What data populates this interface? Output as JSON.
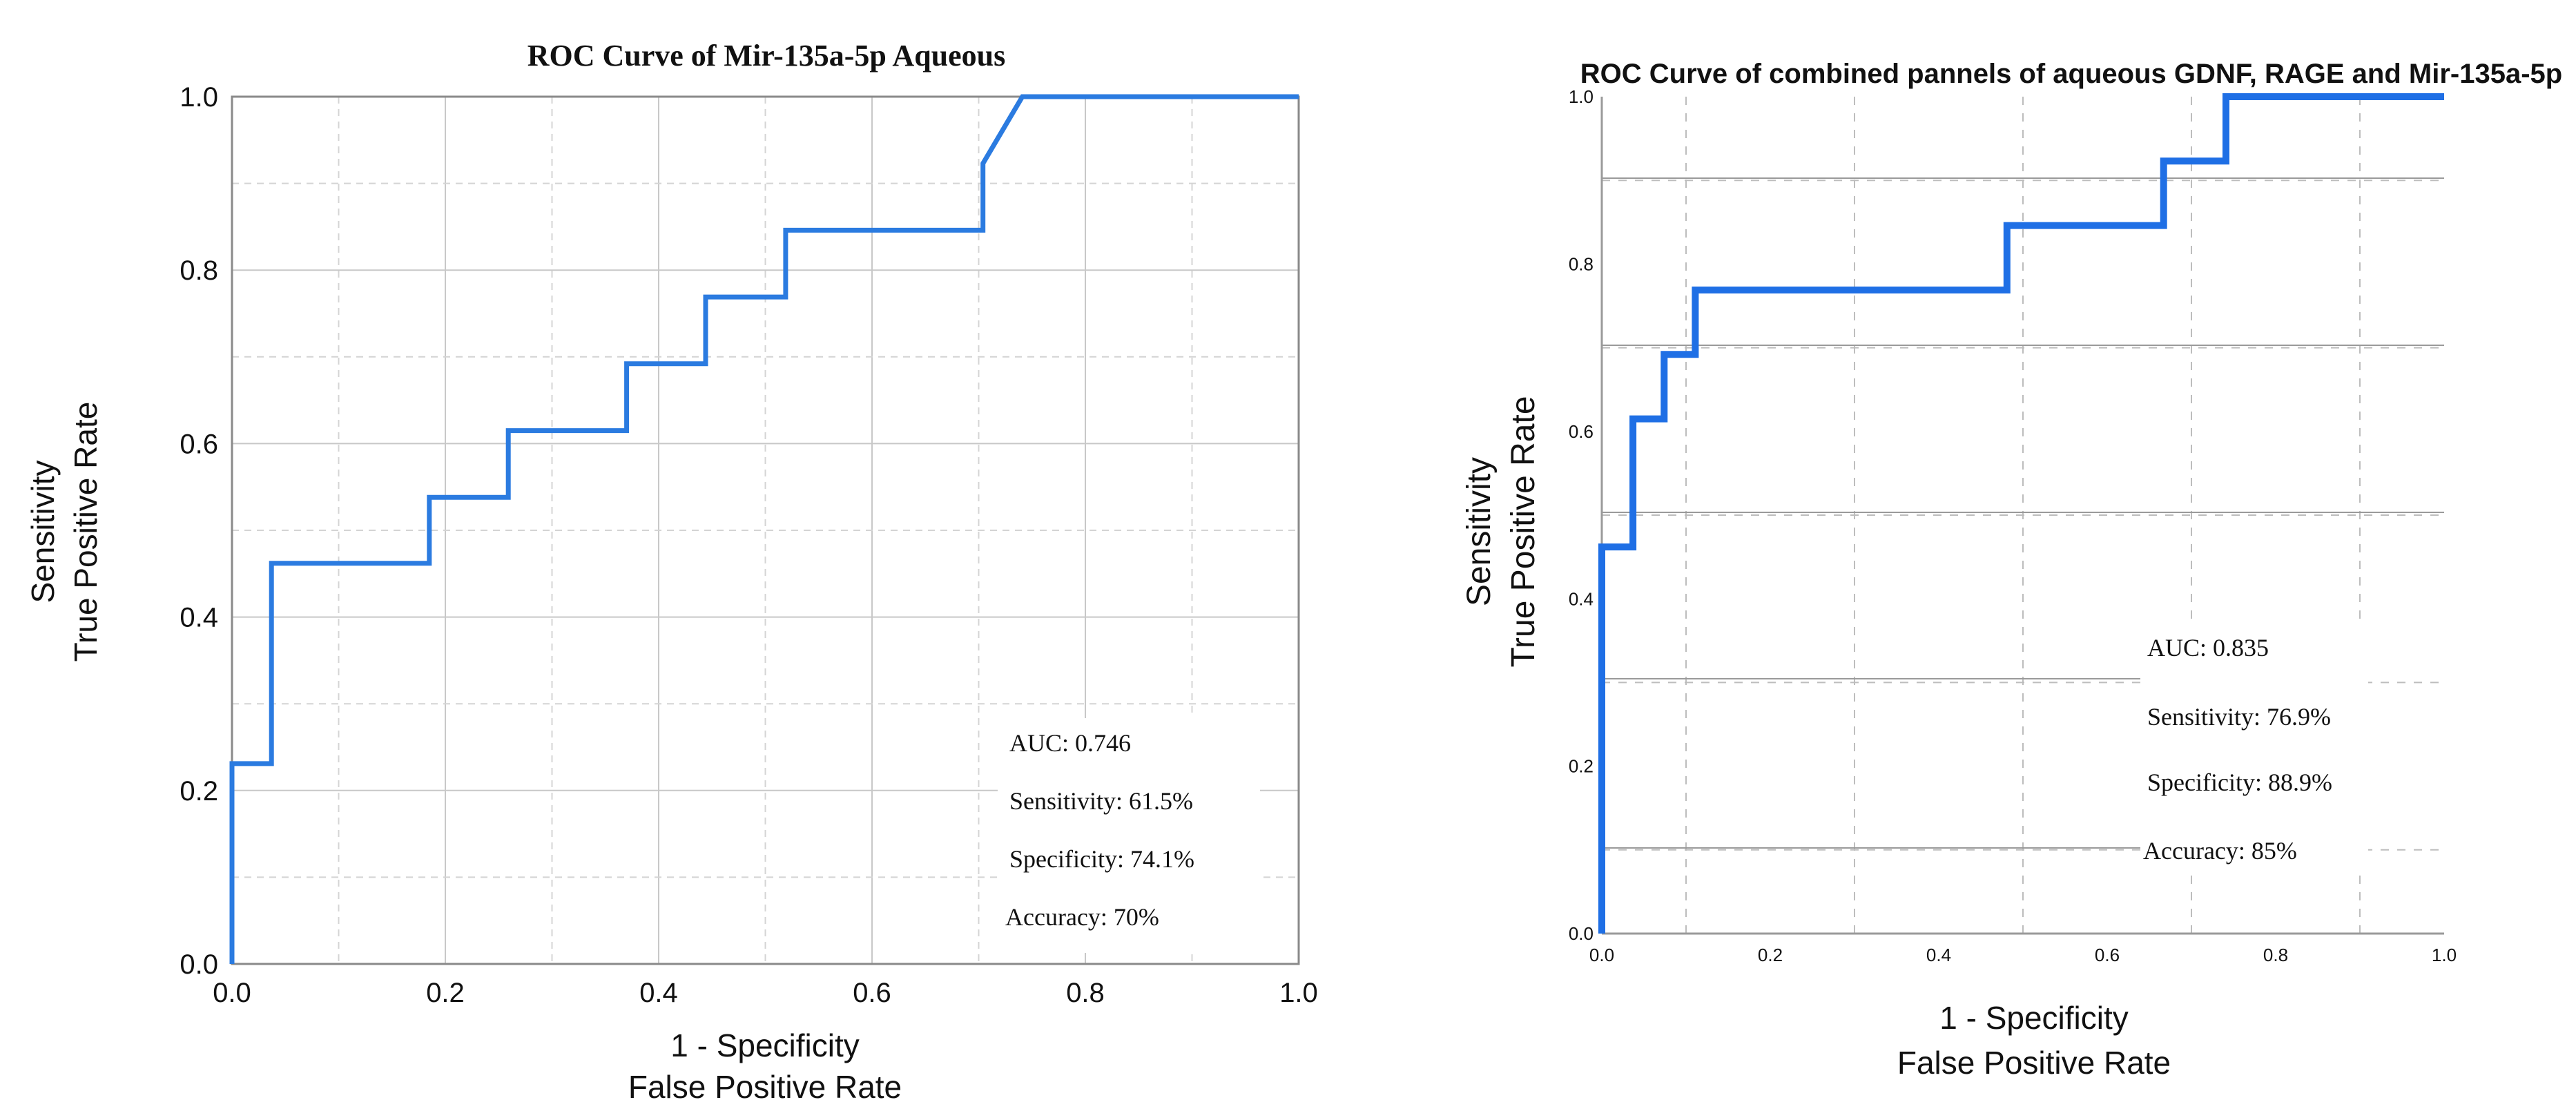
{
  "chart_data": [
    {
      "type": "line",
      "title": "ROC Curve of Mir-135a-5p Aqueous",
      "xlabel_line1": "1 - Specificity",
      "xlabel_line2": "False Positive Rate",
      "ylabel_line1": "Sensitivity",
      "ylabel_line2": "True Positive Rate",
      "xlim": [
        0,
        1
      ],
      "ylim": [
        0,
        1
      ],
      "xticks": [
        0.0,
        0.2,
        0.4,
        0.6,
        0.8,
        1.0
      ],
      "yticks": [
        0.0,
        0.2,
        0.4,
        0.6,
        0.8,
        1.0
      ],
      "tick_labels_x": [
        "0.0",
        "0.2",
        "0.4",
        "0.6",
        "0.8",
        "1.0"
      ],
      "tick_labels_y": [
        "0.0",
        "0.2",
        "0.4",
        "0.6",
        "0.8",
        "1.0"
      ],
      "grid": true,
      "series": [
        {
          "name": "ROC",
          "color": "#2b7be0",
          "x": [
            0,
            0,
            0.037,
            0.037,
            0.185,
            0.185,
            0.259,
            0.259,
            0.37,
            0.37,
            0.444,
            0.444,
            0.519,
            0.519,
            0.704,
            0.704,
            0.741,
            1.0
          ],
          "y": [
            0,
            0.231,
            0.231,
            0.462,
            0.462,
            0.538,
            0.538,
            0.615,
            0.615,
            0.692,
            0.692,
            0.769,
            0.769,
            0.846,
            0.846,
            0.923,
            1.0,
            1.0
          ]
        }
      ],
      "annotations": [
        "AUC: 0.746",
        "Sensitivity: 61.5%",
        "Specificity: 74.1%",
        "Accuracy: 70%"
      ]
    },
    {
      "type": "line",
      "title": "ROC Curve of combined pannels of aqueous GDNF, RAGE and Mir-135a-5p",
      "xlabel_line1": "1 - Specificity",
      "xlabel_line2": "False Positive Rate",
      "ylabel_line1": "Sensitivity",
      "ylabel_line2": "True Positive Rate",
      "xlim": [
        0,
        1
      ],
      "ylim": [
        0,
        1
      ],
      "xticks": [
        0.0,
        0.2,
        0.4,
        0.6,
        0.8,
        1.0
      ],
      "yticks": [
        0.0,
        0.2,
        0.4,
        0.6,
        0.8,
        1.0
      ],
      "tick_labels_x": [
        "0.0",
        "0.2",
        "0.4",
        "0.6",
        "0.8",
        "1.0"
      ],
      "tick_labels_y": [
        "0.0",
        "0.2",
        "0.4",
        "0.6",
        "0.8",
        "1.0"
      ],
      "grid": true,
      "series": [
        {
          "name": "ROC",
          "color": "#1f6fe5",
          "x": [
            0,
            0,
            0.037,
            0.037,
            0.074,
            0.074,
            0.111,
            0.111,
            0.481,
            0.481,
            0.667,
            0.667,
            0.741,
            0.741,
            1.0
          ],
          "y": [
            0,
            0.462,
            0.462,
            0.615,
            0.615,
            0.692,
            0.692,
            0.769,
            0.769,
            0.846,
            0.846,
            0.923,
            0.923,
            1.0,
            1.0
          ]
        }
      ],
      "annotations": [
        "AUC: 0.835",
        "Sensitivity: 76.9%",
        "Specificity: 88.9%",
        "Accuracy: 85%"
      ]
    }
  ]
}
